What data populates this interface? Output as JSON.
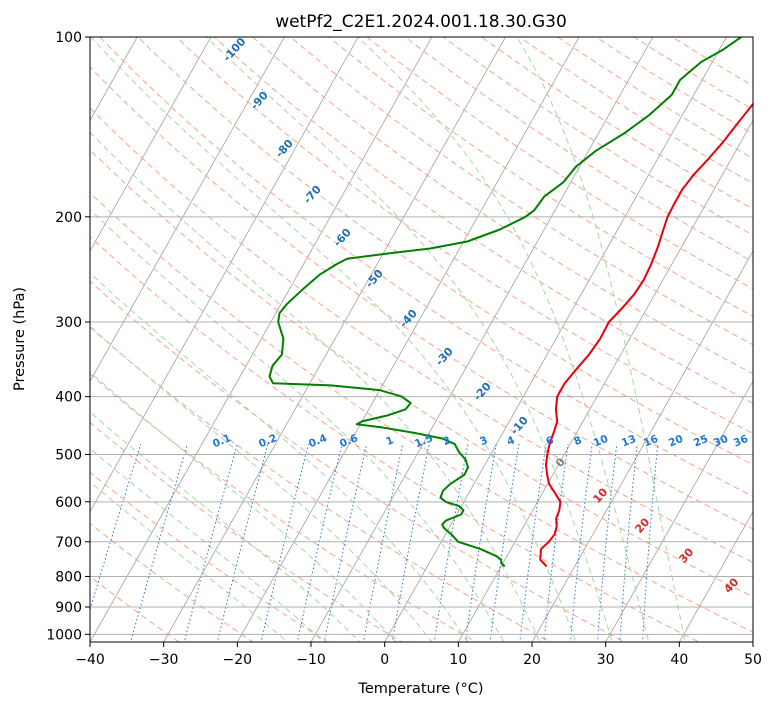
{
  "chart_data": {
    "type": "line",
    "title": "wetPf2_C2E1.2024.001.18.30.G30",
    "xlabel": "Temperature (°C)",
    "ylabel": "Pressure (hPa)",
    "xlim": [
      -40,
      50
    ],
    "ylim": [
      1030,
      100
    ],
    "y_scale": "log",
    "grid": true,
    "x_ticks": [
      "−40",
      "−30",
      "−20",
      "−10",
      "0",
      "10",
      "20",
      "30",
      "40",
      "50"
    ],
    "y_ticks": [
      {
        "p": 100,
        "label": "100"
      },
      {
        "p": 200,
        "label": "200"
      },
      {
        "p": 300,
        "label": "300"
      },
      {
        "p": 400,
        "label": "400"
      },
      {
        "p": 500,
        "label": "500"
      },
      {
        "p": 600,
        "label": "600"
      },
      {
        "p": 700,
        "label": "700"
      },
      {
        "p": 800,
        "label": "800"
      },
      {
        "p": 900,
        "label": "900"
      },
      {
        "p": 1000,
        "label": "1000"
      }
    ],
    "colors": {
      "temperature": "#e8000b",
      "dewpoint": "#008000",
      "isotherm": "#a0a0a0",
      "dry_adiabat": "#f9a58a",
      "moist_adiabat": "#a6d7a6",
      "mixing_ratio": "#1f77d4",
      "wet_bulb_label": "#1f6fb2",
      "isotherm_label": "#d62728",
      "zero_label": "#808080"
    },
    "series": [
      {
        "key": "temperature",
        "points": [
          [
            770,
            16.2
          ],
          [
            750,
            14.8
          ],
          [
            720,
            14.1
          ],
          [
            700,
            14.6
          ],
          [
            680,
            14.8
          ],
          [
            660,
            14.5
          ],
          [
            640,
            13.8
          ],
          [
            620,
            13.6
          ],
          [
            600,
            13.1
          ],
          [
            580,
            11.7
          ],
          [
            560,
            10.2
          ],
          [
            540,
            9.2
          ],
          [
            520,
            8.3
          ],
          [
            500,
            7.7
          ],
          [
            480,
            7.2
          ],
          [
            460,
            6.9
          ],
          [
            440,
            6.5
          ],
          [
            420,
            5.4
          ],
          [
            400,
            4.6
          ],
          [
            380,
            4.6
          ],
          [
            360,
            5.1
          ],
          [
            340,
            5.7
          ],
          [
            320,
            6.0
          ],
          [
            300,
            5.9
          ],
          [
            285,
            6.6
          ],
          [
            270,
            7.2
          ],
          [
            255,
            7.4
          ],
          [
            240,
            7.2
          ],
          [
            225,
            6.8
          ],
          [
            210,
            6.2
          ],
          [
            200,
            5.8
          ],
          [
            190,
            5.7
          ],
          [
            180,
            5.7
          ],
          [
            170,
            6.1
          ],
          [
            160,
            6.9
          ],
          [
            150,
            7.6
          ],
          [
            140,
            8.1
          ],
          [
            130,
            8.7
          ],
          [
            120,
            9.6
          ],
          [
            112,
            10.6
          ],
          [
            106,
            11.0
          ],
          [
            100,
            11.1
          ]
        ]
      },
      {
        "key": "dewpoint",
        "points": [
          [
            770,
            10.5
          ],
          [
            760,
            9.8
          ],
          [
            750,
            9.5
          ],
          [
            740,
            8.6
          ],
          [
            720,
            5.9
          ],
          [
            700,
            2.3
          ],
          [
            680,
            0.8
          ],
          [
            665,
            -0.6
          ],
          [
            655,
            -1.2
          ],
          [
            645,
            -1.0
          ],
          [
            630,
            0.6
          ],
          [
            620,
            0.6
          ],
          [
            610,
            -0.3
          ],
          [
            600,
            -2.5
          ],
          [
            590,
            -3.5
          ],
          [
            575,
            -3.7
          ],
          [
            560,
            -3.2
          ],
          [
            540,
            -2.0
          ],
          [
            525,
            -2.1
          ],
          [
            510,
            -3.0
          ],
          [
            495,
            -4.5
          ],
          [
            480,
            -5.7
          ],
          [
            470,
            -7.8
          ],
          [
            460,
            -12.0
          ],
          [
            450,
            -17.0
          ],
          [
            445,
            -20.5
          ],
          [
            440,
            -20.0
          ],
          [
            430,
            -17.0
          ],
          [
            420,
            -15.0
          ],
          [
            410,
            -14.8
          ],
          [
            400,
            -16.5
          ],
          [
            390,
            -20.0
          ],
          [
            383,
            -27.0
          ],
          [
            380,
            -35.0
          ],
          [
            370,
            -36.0
          ],
          [
            355,
            -36.4
          ],
          [
            340,
            -36.0
          ],
          [
            320,
            -37.0
          ],
          [
            300,
            -39.0
          ],
          [
            290,
            -39.5
          ],
          [
            280,
            -39.2
          ],
          [
            265,
            -38.2
          ],
          [
            250,
            -37.0
          ],
          [
            240,
            -35.5
          ],
          [
            235,
            -34.5
          ],
          [
            230,
            -29.0
          ],
          [
            226,
            -24.0
          ],
          [
            220,
            -19.5
          ],
          [
            210,
            -16.0
          ],
          [
            200,
            -13.5
          ],
          [
            195,
            -12.8
          ],
          [
            185,
            -12.5
          ],
          [
            175,
            -11.0
          ],
          [
            165,
            -10.5
          ],
          [
            155,
            -9.0
          ],
          [
            145,
            -6.5
          ],
          [
            135,
            -4.5
          ],
          [
            125,
            -3.0
          ],
          [
            118,
            -3.0
          ],
          [
            110,
            -1.5
          ],
          [
            105,
            0.5
          ],
          [
            100,
            2.0
          ]
        ]
      }
    ],
    "background": {
      "isotherms_c": [
        -150,
        -140,
        -130,
        -120,
        -110,
        -100,
        -90,
        -80,
        -70,
        -60,
        -50,
        -40,
        -30,
        -20,
        -10,
        0,
        10,
        20,
        30,
        40,
        50
      ],
      "dry_adiabats_theta_c": [
        -30,
        -20,
        -10,
        0,
        10,
        20,
        30,
        40,
        50,
        60,
        70,
        80,
        90,
        100,
        110,
        120,
        130,
        140,
        150,
        160,
        170,
        180,
        190,
        200,
        210,
        220,
        230,
        240
      ],
      "moist_adiabats_c": [
        -15,
        -10,
        -5,
        0,
        5,
        10,
        15,
        20,
        25,
        30,
        35,
        40
      ],
      "mixing_ratio_lines": [
        0.1,
        0.2,
        0.4,
        0.6,
        1,
        1.5,
        2,
        3,
        4,
        6,
        8,
        10,
        13,
        16,
        20,
        25,
        30,
        36
      ]
    },
    "annotations": {
      "wet_bulb_labels": [
        "-100",
        "-90",
        "-80",
        "-70",
        "-60",
        "-50",
        "-40",
        "-30",
        "-20",
        "-10"
      ],
      "wet_bulb_zero_label": "0",
      "isotherm_labels": [
        "10",
        "20",
        "30",
        "40"
      ],
      "mixing_ratio_labels": [
        "0.1",
        "0.2",
        "0.4",
        "0.6",
        "1",
        "1.5",
        "2",
        "3",
        "4",
        "6",
        "8",
        "10",
        "13",
        "16",
        "20",
        "25",
        "30",
        "36"
      ]
    }
  }
}
